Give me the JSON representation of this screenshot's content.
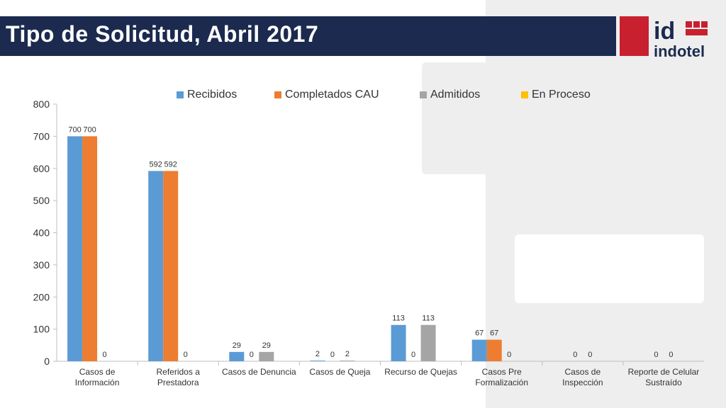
{
  "title": "Tipo de Solicitud, Abril 2017",
  "logo": {
    "mark": "id",
    "name": "indotel"
  },
  "colors": {
    "title_bar": "#1b2a4e",
    "recibidos": "#5b9bd5",
    "completados": "#ed7d31",
    "admitidos": "#a5a5a5",
    "en_proceso": "#ffc000",
    "brand_red": "#c8202f"
  },
  "chart_data": {
    "type": "bar",
    "categories": [
      [
        "Casos de",
        "Información"
      ],
      [
        "Referidos a",
        "Prestadora"
      ],
      [
        "Casos de Denuncia"
      ],
      [
        "Casos de Queja"
      ],
      [
        "Recurso de Quejas"
      ],
      [
        "Casos Pre",
        "Formalización"
      ],
      [
        "Casos de",
        "Inspección"
      ],
      [
        "Reporte de Celular",
        "Sustraído"
      ]
    ],
    "series": [
      {
        "name": "Recibidos",
        "color": "#5b9bd5",
        "values": [
          700,
          592,
          29,
          2,
          113,
          67,
          null,
          null
        ]
      },
      {
        "name": "Completados CAU",
        "color": "#ed7d31",
        "values": [
          700,
          592,
          0,
          0,
          0,
          67,
          0,
          0
        ]
      },
      {
        "name": "Admitidos",
        "color": "#a5a5a5",
        "values": [
          0,
          0,
          29,
          2,
          113,
          0,
          0,
          0
        ]
      },
      {
        "name": "En Proceso",
        "color": "#ffc000",
        "values": [
          0,
          0,
          0,
          0,
          0,
          0,
          0,
          0
        ]
      }
    ],
    "ylim": [
      0,
      800
    ],
    "yticks": [
      0,
      100,
      200,
      300,
      400,
      500,
      600,
      700,
      800
    ],
    "grid": false,
    "legend_position": "top"
  }
}
